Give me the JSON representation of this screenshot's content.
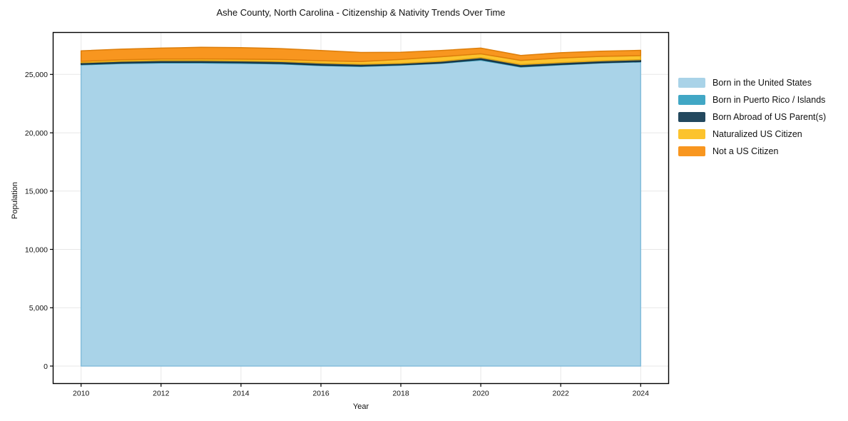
{
  "chart_data": {
    "type": "area",
    "stacked": true,
    "title": "Ashe County, North Carolina - Citizenship & Nativity Trends Over Time",
    "xlabel": "Year",
    "ylabel": "Population",
    "grid": true,
    "legend_position": "right-outside",
    "x": [
      2010,
      2011,
      2012,
      2013,
      2014,
      2015,
      2016,
      2017,
      2018,
      2019,
      2020,
      2021,
      2022,
      2023,
      2024
    ],
    "xlim": [
      2009.3,
      2024.7
    ],
    "ylim": [
      -1500,
      28600
    ],
    "xtick_values": [
      2010,
      2012,
      2014,
      2016,
      2018,
      2020,
      2022,
      2024
    ],
    "xtick_labels": [
      "2010",
      "2012",
      "2014",
      "2016",
      "2018",
      "2020",
      "2022",
      "2024"
    ],
    "ytick_values": [
      0,
      5000,
      10000,
      15000,
      20000,
      25000
    ],
    "ytick_labels": [
      "0",
      "5,000",
      "10,000",
      "15,000",
      "20,000",
      "25,000"
    ],
    "series": [
      {
        "key": "born-us",
        "name": "Born in the United States",
        "color": "#a9d3e8",
        "edge": "#85bedb",
        "values": [
          25820,
          25940,
          25990,
          25990,
          25960,
          25900,
          25760,
          25690,
          25790,
          25950,
          26230,
          25640,
          25820,
          25990,
          26080
        ]
      },
      {
        "key": "born-pr-islands",
        "name": "Born in Puerto Rico / Islands",
        "color": "#41a7c5",
        "edge": "#2f91ae",
        "values": [
          50,
          50,
          50,
          50,
          50,
          50,
          40,
          40,
          40,
          40,
          60,
          50,
          40,
          30,
          30
        ]
      },
      {
        "key": "born-abroad",
        "name": "Born Abroad of US Parent(s)",
        "color": "#23485e",
        "edge": "#16303f",
        "values": [
          140,
          140,
          150,
          150,
          150,
          160,
          170,
          150,
          120,
          140,
          150,
          160,
          150,
          150,
          160
        ]
      },
      {
        "key": "naturalized",
        "name": "Naturalized US Citizen",
        "color": "#fcc32d",
        "edge": "#e0a414",
        "values": [
          120,
          130,
          130,
          140,
          150,
          170,
          210,
          230,
          340,
          390,
          330,
          360,
          400,
          380,
          350
        ]
      },
      {
        "key": "not-citizen",
        "name": "Not a US Citizen",
        "color": "#f8961f",
        "edge": "#dd7e0b",
        "values": [
          900,
          910,
          940,
          1000,
          990,
          940,
          880,
          780,
          610,
          530,
          490,
          420,
          450,
          440,
          450
        ]
      }
    ],
    "colors": {
      "background": "#ffffff",
      "gridline": "#e7e7e7",
      "spine": "#000000",
      "text": "#111111"
    }
  }
}
